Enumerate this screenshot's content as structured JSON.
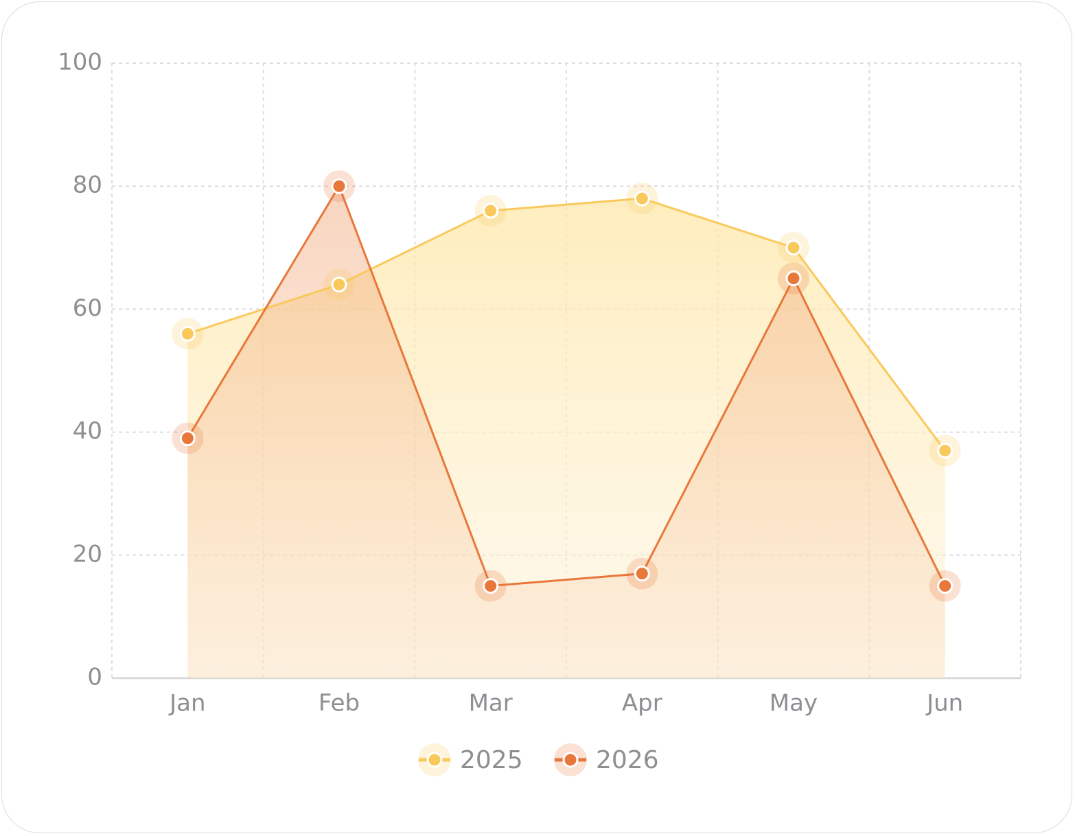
{
  "chart_data": {
    "type": "area",
    "categories": [
      "Jan",
      "Feb",
      "Mar",
      "Apr",
      "May",
      "Jun"
    ],
    "series": [
      {
        "name": "2025",
        "color": "#f9c95c",
        "values": [
          56,
          64,
          76,
          78,
          70,
          37
        ]
      },
      {
        "name": "2026",
        "color": "#e8773a",
        "values": [
          39,
          80,
          15,
          17,
          65,
          15
        ]
      }
    ],
    "ylim": [
      0,
      100
    ],
    "yticks": [
      0,
      20,
      40,
      60,
      80,
      100
    ],
    "grid": true,
    "legend": "bottom"
  }
}
